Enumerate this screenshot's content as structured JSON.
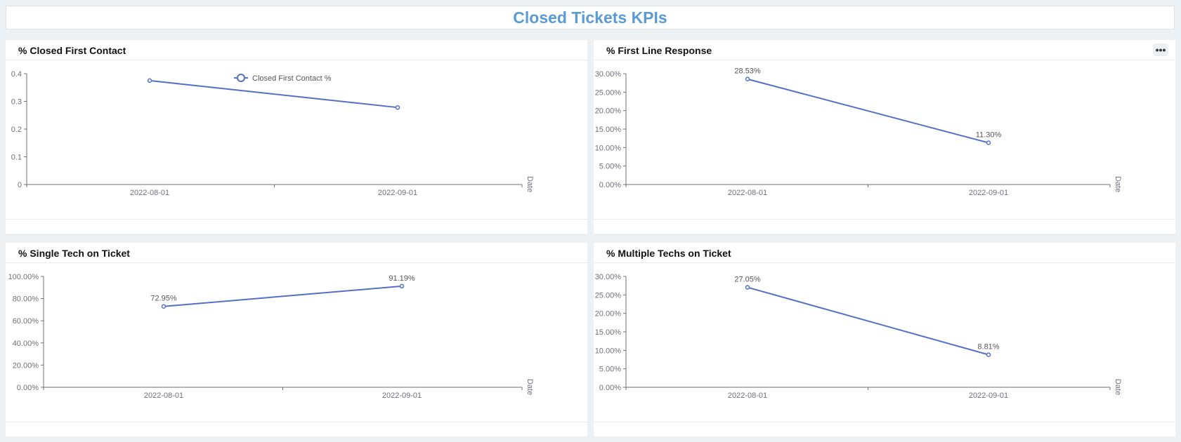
{
  "page": {
    "title": "Closed Tickets KPIs"
  },
  "panels": [
    {
      "title": "% Closed First Contact",
      "has_more_button": false
    },
    {
      "title": "% First Line Response",
      "has_more_button": true,
      "more_button_label": "•••"
    },
    {
      "title": "% Single Tech on Ticket",
      "has_more_button": false
    },
    {
      "title": "% Multiple Techs on Ticket",
      "has_more_button": false
    }
  ],
  "colors": {
    "series": "#5470c6",
    "title": "#5b9bd5",
    "axis": "#6e7079",
    "label": "#555555"
  },
  "chart_data": [
    {
      "type": "line",
      "title": "% Closed First Contact",
      "categories": [
        "2022-08-01",
        "2022-09-01"
      ],
      "xlabel": "Date",
      "series": [
        {
          "name": "Closed First Contact %",
          "values": [
            0.375,
            0.278
          ]
        }
      ],
      "yticks": [
        "0",
        "0.1",
        "0.2",
        "0.3",
        "0.4"
      ],
      "ylim": [
        0,
        0.4
      ],
      "data_labels": false,
      "legend": "top-center",
      "grid": false
    },
    {
      "type": "line",
      "title": "% First Line Response",
      "categories": [
        "2022-08-01",
        "2022-09-01"
      ],
      "xlabel": "Date",
      "series": [
        {
          "values": [
            28.53,
            11.3
          ]
        }
      ],
      "value_labels": [
        "28.53%",
        "11.30%"
      ],
      "yticks": [
        "0.00%",
        "5.00%",
        "10.00%",
        "15.00%",
        "20.00%",
        "25.00%",
        "30.00%"
      ],
      "ylim": [
        0,
        30
      ],
      "data_labels": true,
      "grid": false
    },
    {
      "type": "line",
      "title": "% Single Tech on Ticket",
      "categories": [
        "2022-08-01",
        "2022-09-01"
      ],
      "xlabel": "Date",
      "series": [
        {
          "values": [
            72.95,
            91.19
          ]
        }
      ],
      "value_labels": [
        "72.95%",
        "91.19%"
      ],
      "yticks": [
        "0.00%",
        "20.00%",
        "40.00%",
        "60.00%",
        "80.00%",
        "100.00%"
      ],
      "ylim": [
        0,
        100
      ],
      "data_labels": true,
      "grid": false
    },
    {
      "type": "line",
      "title": "% Multiple Techs on Ticket",
      "categories": [
        "2022-08-01",
        "2022-09-01"
      ],
      "xlabel": "Date",
      "series": [
        {
          "values": [
            27.05,
            8.81
          ]
        }
      ],
      "value_labels": [
        "27.05%",
        "8.81%"
      ],
      "yticks": [
        "0.00%",
        "5.00%",
        "10.00%",
        "15.00%",
        "20.00%",
        "25.00%",
        "30.00%"
      ],
      "ylim": [
        0,
        30
      ],
      "data_labels": true,
      "grid": false
    }
  ]
}
